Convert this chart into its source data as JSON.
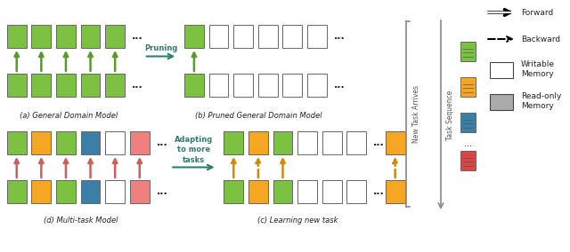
{
  "colors": {
    "green": "#7DC142",
    "orange": "#F5A623",
    "blue": "#3A7FA8",
    "pink": "#F08080",
    "white": "#FFFFFF",
    "gray": "#AAAAAA",
    "dark_gray": "#888888",
    "arrow_green": "#5A9A2A",
    "arrow_orange": "#D4880A",
    "arrow_pink": "#C86060",
    "teal": "#2E7D6C",
    "black": "#222222",
    "border": "#666666",
    "light_border": "#999999"
  },
  "title_a": "(a) General Domain Model",
  "title_b": "(b) Pruned General Domain Model",
  "title_c": "(c) Learning new task",
  "title_d": "(d) Multi-task Model",
  "legend_forward": "Forward",
  "legend_backward": "Backward",
  "legend_writable": "Writable\nMemory",
  "legend_readonly": "Read-only\nMemory",
  "label_pruning": "Pruning",
  "label_adapting": "Adapting\nto more\ntasks",
  "label_new_task": "New Task Arrives",
  "label_task_seq": "Task Sequence"
}
